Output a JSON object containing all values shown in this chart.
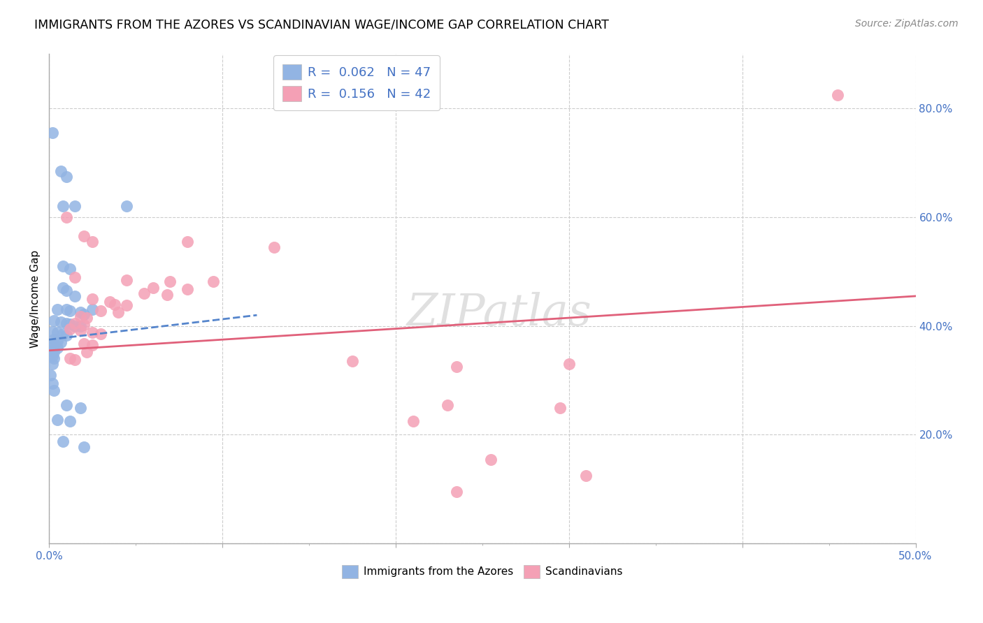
{
  "title": "IMMIGRANTS FROM THE AZORES VS SCANDINAVIAN WAGE/INCOME GAP CORRELATION CHART",
  "source": "Source: ZipAtlas.com",
  "ylabel": "Wage/Income Gap",
  "xlim": [
    0.0,
    0.5
  ],
  "ylim": [
    0.0,
    0.9
  ],
  "x_ticks": [
    0.0,
    0.1,
    0.2,
    0.3,
    0.4,
    0.5
  ],
  "x_tick_labels": [
    "0.0%",
    "",
    "",
    "",
    "",
    "50.0%"
  ],
  "y_ticks": [
    0.0,
    0.2,
    0.4,
    0.6,
    0.8
  ],
  "y_tick_labels": [
    "",
    "20.0%",
    "40.0%",
    "60.0%",
    "80.0%"
  ],
  "legend1_label": "R =  0.062   N = 47",
  "legend2_label": "R =  0.156   N = 42",
  "blue_color": "#92b4e3",
  "pink_color": "#f4a0b5",
  "blue_line_color": "#5585cc",
  "pink_line_color": "#e0607a",
  "watermark": "ZIPatlas",
  "blue_scatter": [
    [
      0.002,
      0.755
    ],
    [
      0.007,
      0.685
    ],
    [
      0.01,
      0.675
    ],
    [
      0.008,
      0.62
    ],
    [
      0.015,
      0.62
    ],
    [
      0.045,
      0.62
    ],
    [
      0.008,
      0.51
    ],
    [
      0.012,
      0.505
    ],
    [
      0.008,
      0.47
    ],
    [
      0.01,
      0.465
    ],
    [
      0.015,
      0.455
    ],
    [
      0.005,
      0.43
    ],
    [
      0.01,
      0.43
    ],
    [
      0.012,
      0.428
    ],
    [
      0.018,
      0.425
    ],
    [
      0.02,
      0.422
    ],
    [
      0.025,
      0.43
    ],
    [
      0.003,
      0.41
    ],
    [
      0.007,
      0.408
    ],
    [
      0.01,
      0.405
    ],
    [
      0.012,
      0.403
    ],
    [
      0.015,
      0.4
    ],
    [
      0.018,
      0.4
    ],
    [
      0.002,
      0.39
    ],
    [
      0.005,
      0.388
    ],
    [
      0.008,
      0.385
    ],
    [
      0.01,
      0.383
    ],
    [
      0.003,
      0.375
    ],
    [
      0.005,
      0.373
    ],
    [
      0.007,
      0.37
    ],
    [
      0.002,
      0.365
    ],
    [
      0.003,
      0.362
    ],
    [
      0.005,
      0.36
    ],
    [
      0.002,
      0.355
    ],
    [
      0.003,
      0.352
    ],
    [
      0.002,
      0.345
    ],
    [
      0.003,
      0.34
    ],
    [
      0.002,
      0.33
    ],
    [
      0.001,
      0.31
    ],
    [
      0.002,
      0.295
    ],
    [
      0.003,
      0.282
    ],
    [
      0.01,
      0.255
    ],
    [
      0.018,
      0.25
    ],
    [
      0.005,
      0.228
    ],
    [
      0.012,
      0.225
    ],
    [
      0.008,
      0.188
    ],
    [
      0.02,
      0.178
    ]
  ],
  "pink_scatter": [
    [
      0.455,
      0.825
    ],
    [
      0.01,
      0.6
    ],
    [
      0.02,
      0.565
    ],
    [
      0.025,
      0.555
    ],
    [
      0.08,
      0.555
    ],
    [
      0.13,
      0.545
    ],
    [
      0.015,
      0.49
    ],
    [
      0.045,
      0.485
    ],
    [
      0.07,
      0.482
    ],
    [
      0.095,
      0.482
    ],
    [
      0.06,
      0.47
    ],
    [
      0.08,
      0.468
    ],
    [
      0.055,
      0.46
    ],
    [
      0.068,
      0.458
    ],
    [
      0.025,
      0.45
    ],
    [
      0.035,
      0.445
    ],
    [
      0.038,
      0.44
    ],
    [
      0.045,
      0.438
    ],
    [
      0.03,
      0.428
    ],
    [
      0.04,
      0.425
    ],
    [
      0.018,
      0.418
    ],
    [
      0.022,
      0.415
    ],
    [
      0.015,
      0.405
    ],
    [
      0.02,
      0.402
    ],
    [
      0.012,
      0.395
    ],
    [
      0.018,
      0.392
    ],
    [
      0.025,
      0.388
    ],
    [
      0.03,
      0.385
    ],
    [
      0.02,
      0.368
    ],
    [
      0.025,
      0.365
    ],
    [
      0.022,
      0.352
    ],
    [
      0.012,
      0.34
    ],
    [
      0.015,
      0.338
    ],
    [
      0.175,
      0.335
    ],
    [
      0.3,
      0.33
    ],
    [
      0.235,
      0.325
    ],
    [
      0.23,
      0.255
    ],
    [
      0.295,
      0.25
    ],
    [
      0.21,
      0.225
    ],
    [
      0.255,
      0.155
    ],
    [
      0.31,
      0.125
    ],
    [
      0.235,
      0.095
    ]
  ],
  "blue_trendline": [
    [
      0.0,
      0.375
    ],
    [
      0.12,
      0.42
    ]
  ],
  "pink_trendline": [
    [
      0.0,
      0.355
    ],
    [
      0.5,
      0.455
    ]
  ]
}
